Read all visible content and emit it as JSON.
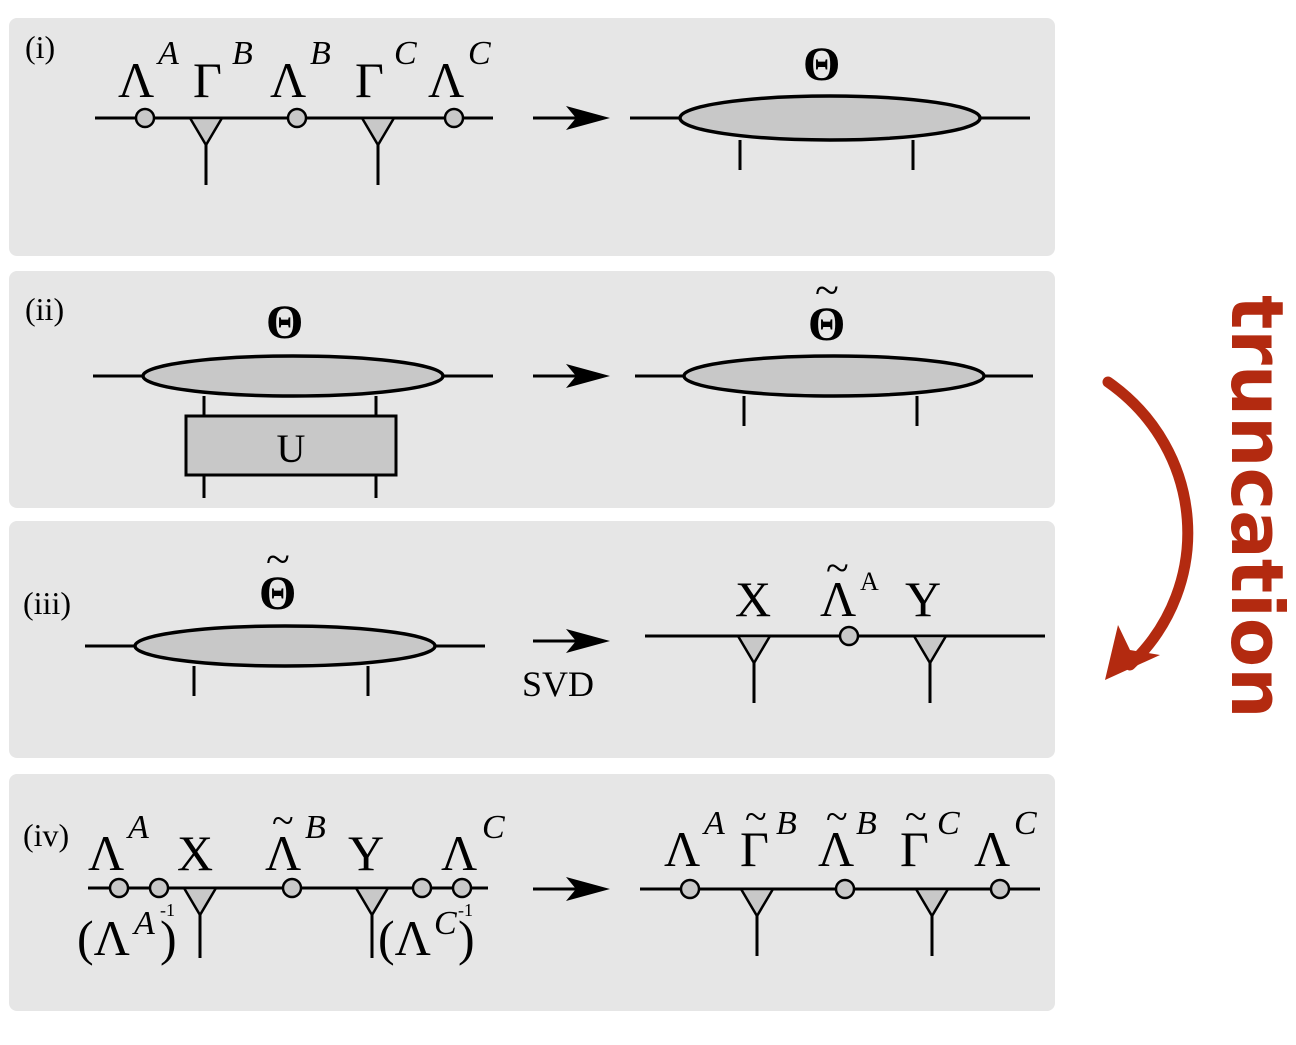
{
  "panels": {
    "i": {
      "tag": "(i)",
      "left": {
        "lambda_a": "Λ",
        "lambda_a_sup": "A",
        "gamma_b": "Γ",
        "gamma_b_sup": "B",
        "lambda_b": "Λ",
        "lambda_b_sup": "B",
        "gamma_c": "Γ",
        "gamma_c_sup": "C",
        "lambda_c": "Λ",
        "lambda_c_sup": "C"
      },
      "right": {
        "theta": "Θ"
      }
    },
    "ii": {
      "tag": "(ii)",
      "left": {
        "theta": "Θ",
        "gate": "U"
      },
      "right": {
        "theta_tilde": "Θ",
        "tilde": "~"
      }
    },
    "iii": {
      "tag": "(iii)",
      "left": {
        "theta_tilde": "Θ",
        "tilde": "~"
      },
      "arrow_label": "SVD",
      "right": {
        "x": "X",
        "lambda_tilde": "Λ",
        "lambda_tilde_sup": "A",
        "tilde": "~",
        "y": "Y"
      }
    },
    "iv": {
      "tag": "(iv)",
      "left": {
        "lambda_a": "Λ",
        "lambda_a_sup": "A",
        "x": "X",
        "lambda_b_tilde": "Λ",
        "lambda_b_sup": "B",
        "y": "Y",
        "lambda_c": "Λ",
        "lambda_c_sup": "C",
        "inv_a_open": "(Λ",
        "inv_a_sup": "A",
        "inv_a_close": ")",
        "inv_a_exp": "-1",
        "inv_c_open": "(Λ",
        "inv_c_sup": "C",
        "inv_c_close": ")",
        "inv_c_exp": "-1"
      },
      "right": {
        "lambda_a": "Λ",
        "lambda_a_sup": "A",
        "gamma_b": "Γ",
        "gamma_b_sup": "B",
        "lambda_b": "Λ",
        "lambda_b_sup": "B",
        "gamma_c": "Γ",
        "gamma_c_sup": "C",
        "lambda_c": "Λ",
        "lambda_c_sup": "C",
        "tilde": "~"
      }
    }
  },
  "side_label": "truncation",
  "colors": {
    "panel_bg": "#e6e6e6",
    "node_fill": "#c8c8c8",
    "accent": "#b32a10"
  }
}
